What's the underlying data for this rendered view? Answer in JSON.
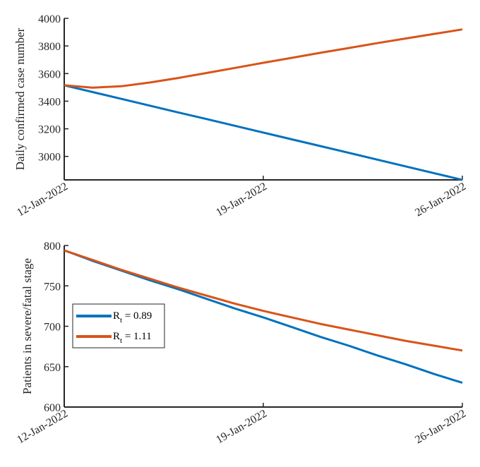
{
  "chart_data": [
    {
      "type": "line",
      "title": "",
      "xlabel": "",
      "ylabel": "Daily confirmed case number",
      "x": [
        0,
        1,
        2,
        3,
        4,
        5,
        6,
        7,
        8,
        9,
        10,
        11,
        12,
        13,
        14
      ],
      "xticks": [
        0,
        7,
        14
      ],
      "xtick_labels": [
        "12-Jan-2022",
        "19-Jan-2022",
        "26-Jan-2022"
      ],
      "xlim": [
        0,
        14
      ],
      "ylim": [
        2830,
        4000
      ],
      "yticks": [
        3000,
        3200,
        3400,
        3600,
        3800,
        4000
      ],
      "ytick_labels": [
        "3000",
        "3200",
        "3400",
        "3600",
        "3800",
        "4000"
      ],
      "grid": false,
      "series": [
        {
          "name": "R_t = 0.89",
          "color": "#0072BD",
          "values": [
            3515,
            3466,
            3417,
            3368,
            3319,
            3271,
            3222,
            3173,
            3124,
            3075,
            3026,
            2977,
            2928,
            2879,
            2830
          ]
        },
        {
          "name": "R_t = 1.11",
          "color": "#D95319",
          "values": [
            3515,
            3498,
            3508,
            3535,
            3568,
            3604,
            3641,
            3678,
            3714,
            3750,
            3785,
            3820,
            3854,
            3887,
            3920
          ]
        }
      ]
    },
    {
      "type": "line",
      "title": "",
      "xlabel": "",
      "ylabel": "Patients in severe/fatal stage",
      "x": [
        0,
        1,
        2,
        3,
        4,
        5,
        6,
        7,
        8,
        9,
        10,
        11,
        12,
        13,
        14
      ],
      "xticks": [
        0,
        7,
        14
      ],
      "xtick_labels": [
        "12-Jan-2022",
        "19-Jan-2022",
        "26-Jan-2022"
      ],
      "xlim": [
        0,
        14
      ],
      "ylim": [
        600,
        800
      ],
      "yticks": [
        600,
        650,
        700,
        750,
        800
      ],
      "ytick_labels": [
        "600",
        "650",
        "700",
        "750",
        "800"
      ],
      "grid": false,
      "legend": {
        "placement": "middle-left",
        "entries": [
          {
            "label_main": "R",
            "label_sub": "t",
            "label_rest": " = 0.89",
            "color": "#0072BD"
          },
          {
            "label_main": "R",
            "label_sub": "t",
            "label_rest": " = 1.11",
            "color": "#D95319"
          }
        ]
      },
      "series": [
        {
          "name": "R_t = 0.89",
          "color": "#0072BD",
          "values": [
            794,
            781,
            769,
            757,
            746,
            734,
            722,
            711,
            699,
            687,
            676,
            664,
            653,
            641,
            630
          ]
        },
        {
          "name": "R_t = 1.11",
          "color": "#D95319",
          "values": [
            794,
            782,
            770,
            759,
            748,
            738,
            728,
            719,
            711,
            703,
            696,
            689,
            682,
            676,
            670
          ]
        }
      ]
    }
  ]
}
